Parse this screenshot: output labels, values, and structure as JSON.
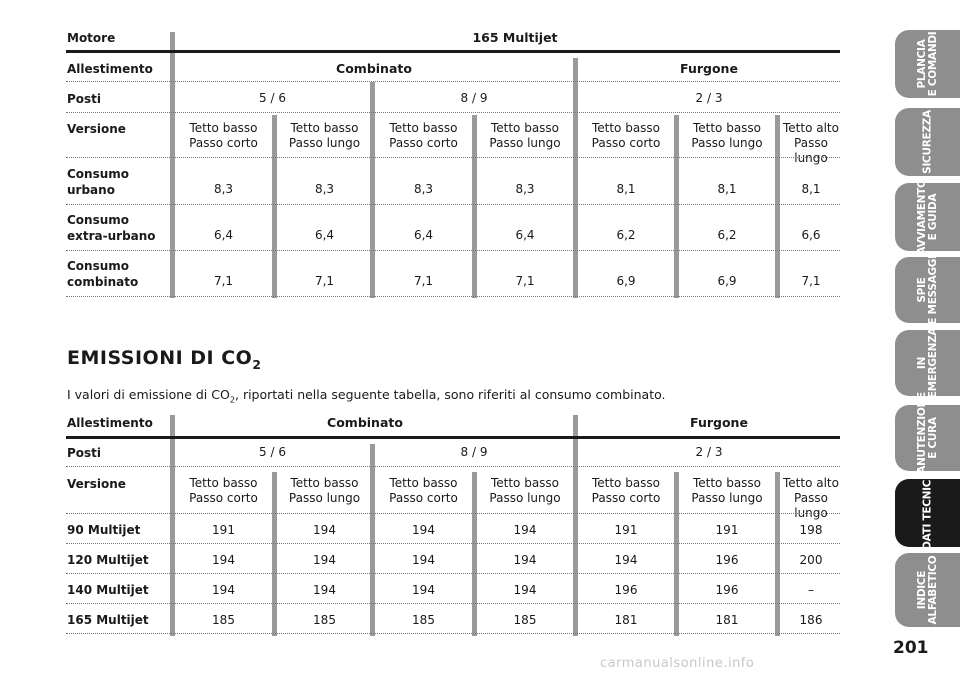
{
  "table1": {
    "motore_label": "Motore",
    "motore_value": "165 Multijet",
    "allestimento_label": "Allestimento",
    "combinato": "Combinato",
    "furgone": "Furgone",
    "posti_label": "Posti",
    "posti": [
      "5 / 6",
      "8 / 9",
      "2 / 3"
    ],
    "versione_label": "Versione",
    "versioni": [
      [
        "Tetto basso",
        "Passo corto"
      ],
      [
        "Tetto basso",
        "Passo lungo"
      ],
      [
        "Tetto basso",
        "Passo corto"
      ],
      [
        "Tetto basso",
        "Passo lungo"
      ],
      [
        "Tetto basso",
        "Passo corto"
      ],
      [
        "Tetto basso",
        "Passo lungo"
      ],
      [
        "Tetto alto",
        "Passo lungo"
      ]
    ],
    "rows": [
      {
        "label1": "Consumo",
        "label2": "urbano",
        "values": [
          "8,3",
          "8,3",
          "8,3",
          "8,3",
          "8,1",
          "8,1",
          "8,1"
        ]
      },
      {
        "label1": "Consumo",
        "label2": "extra-urbano",
        "values": [
          "6,4",
          "6,4",
          "6,4",
          "6,4",
          "6,2",
          "6,2",
          "6,6"
        ]
      },
      {
        "label1": "Consumo",
        "label2": "combinato",
        "values": [
          "7,1",
          "7,1",
          "7,1",
          "7,1",
          "6,9",
          "6,9",
          "7,1"
        ]
      }
    ]
  },
  "section": {
    "title": "EMISSIONI DI CO",
    "title_sub": "2",
    "intro_a": "I valori di emissione di CO",
    "intro_sub": "2",
    "intro_b": ", riportati nella seguente tabella, sono riferiti al consumo combinato."
  },
  "table2": {
    "allestimento_label": "Allestimento",
    "combinato": "Combinato",
    "furgone": "Furgone",
    "posti_label": "Posti",
    "posti": [
      "5 / 6",
      "8 / 9",
      "2 / 3"
    ],
    "versione_label": "Versione",
    "versioni": [
      [
        "Tetto basso",
        "Passo corto"
      ],
      [
        "Tetto basso",
        "Passo lungo"
      ],
      [
        "Tetto basso",
        "Passo corto"
      ],
      [
        "Tetto basso",
        "Passo lungo"
      ],
      [
        "Tetto basso",
        "Passo corto"
      ],
      [
        "Tetto basso",
        "Passo lungo"
      ],
      [
        "Tetto alto",
        "Passo lungo"
      ]
    ],
    "rows": [
      {
        "label": "90 Multijet",
        "values": [
          "191",
          "194",
          "194",
          "194",
          "191",
          "191",
          "198"
        ]
      },
      {
        "label": "120 Multijet",
        "values": [
          "194",
          "194",
          "194",
          "194",
          "194",
          "196",
          "200"
        ]
      },
      {
        "label": "140 Multijet",
        "values": [
          "194",
          "194",
          "194",
          "194",
          "196",
          "196",
          "–"
        ]
      },
      {
        "label": "165 Multijet",
        "values": [
          "185",
          "185",
          "185",
          "185",
          "181",
          "181",
          "186"
        ]
      }
    ]
  },
  "tabs": [
    {
      "label": "PLANCIA\nE COMANDI",
      "active": false
    },
    {
      "label": "SICUREZZA",
      "active": false
    },
    {
      "label": "AVVIAMENTO\nE GUIDA",
      "active": false
    },
    {
      "label": "SPIE\nE MESSAGGI",
      "active": false
    },
    {
      "label": "IN\nEMERGENZA",
      "active": false
    },
    {
      "label": "MANUTENZIONE\nE CURA",
      "active": false
    },
    {
      "label": "DATI TECNICI",
      "active": true
    },
    {
      "label": "INDICE\nALFABETICO",
      "active": false
    }
  ],
  "page_number": "201",
  "watermark": "carmanualsonline.info",
  "colors": {
    "tab": "#8e8e8e",
    "tab_active": "#1a1a1a",
    "bar": "#9a9a9a"
  }
}
